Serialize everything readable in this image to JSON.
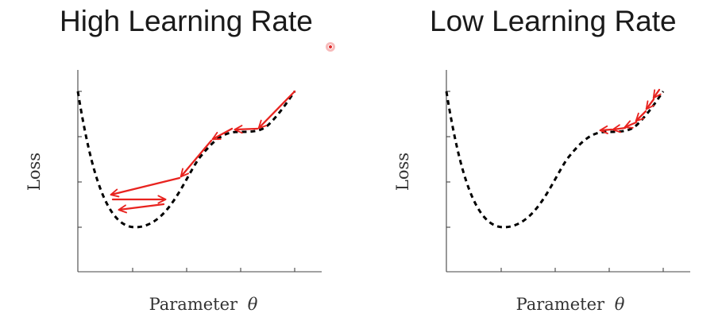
{
  "panels": [
    {
      "title": "High Learning Rate",
      "xlabel": "Parameter",
      "theta": "θ",
      "ylabel": "Loss"
    },
    {
      "title": "Low Learning Rate",
      "xlabel": "Parameter",
      "theta": "θ",
      "ylabel": "Loss"
    }
  ],
  "colors": {
    "curve": "#000000",
    "step_arrow": "#e8231f",
    "axis": "#444444",
    "title_text": "#1a1a1a"
  },
  "cursor": {
    "icon": "cursor-dot-icon"
  }
}
